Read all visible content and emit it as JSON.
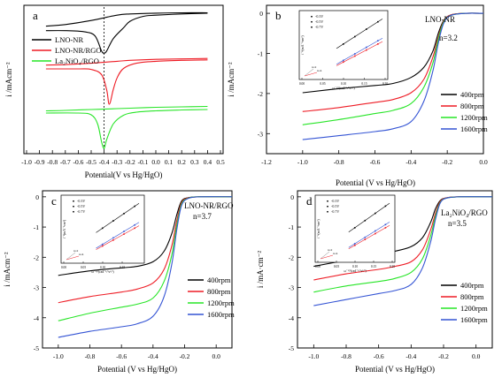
{
  "colors": {
    "black": "#000000",
    "red": "#ee1c25",
    "green": "#27e527",
    "blue": "#3454d4"
  },
  "chart_data": [
    {
      "panel": "a",
      "type": "line",
      "xlabel": "Potential(V vs Hg/HgO)",
      "ylabel": "i /mAcm⁻²",
      "xlim": [
        -1.0,
        0.5
      ],
      "xticks": [
        "-1.0",
        "-0.9",
        "-0.8",
        "-0.7",
        "-0.6",
        "-0.5",
        "-0.4",
        "-0.3",
        "-0.2",
        "-0.1",
        "0.0",
        "0.1",
        "0.2",
        "0.3",
        "0.4",
        "0.5"
      ],
      "y_tick_labels": "none",
      "legend": "top-left",
      "vertical_line_x": -0.4,
      "series": [
        {
          "name": "LNO-NR",
          "color": "black",
          "forward": [
            [
              -0.85,
              0.55
            ],
            [
              -0.7,
              0.55
            ],
            [
              -0.55,
              0.52
            ],
            [
              -0.47,
              0.42
            ],
            [
              -0.42,
              0.05
            ],
            [
              -0.4,
              0.0
            ],
            [
              -0.38,
              0.05
            ],
            [
              -0.33,
              0.35
            ],
            [
              -0.25,
              0.62
            ],
            [
              -0.2,
              0.78
            ],
            [
              -0.1,
              0.9
            ],
            [
              0.0,
              0.93
            ],
            [
              0.2,
              0.96
            ],
            [
              0.4,
              0.98
            ]
          ],
          "reverse": [
            [
              0.4,
              0.99
            ],
            [
              0.2,
              0.99
            ],
            [
              0.0,
              0.98
            ],
            [
              -0.2,
              0.96
            ],
            [
              -0.3,
              0.93
            ],
            [
              -0.5,
              0.8
            ],
            [
              -0.7,
              0.7
            ],
            [
              -0.85,
              0.66
            ]
          ]
        },
        {
          "name": "LNO-NR/RGO",
          "color": "red",
          "forward": [
            [
              -0.85,
              0.74
            ],
            [
              -0.6,
              0.74
            ],
            [
              -0.5,
              0.73
            ],
            [
              -0.42,
              0.62
            ],
            [
              -0.38,
              0.3
            ],
            [
              -0.36,
              0.0
            ],
            [
              -0.33,
              0.3
            ],
            [
              -0.3,
              0.55
            ],
            [
              -0.25,
              0.75
            ],
            [
              -0.15,
              0.86
            ],
            [
              0.0,
              0.9
            ],
            [
              0.2,
              0.92
            ],
            [
              0.4,
              0.93
            ]
          ],
          "reverse": [
            [
              0.4,
              0.96
            ],
            [
              0.2,
              0.95
            ],
            [
              0.0,
              0.94
            ],
            [
              -0.2,
              0.92
            ],
            [
              -0.3,
              0.9
            ],
            [
              -0.5,
              0.86
            ],
            [
              -0.7,
              0.83
            ],
            [
              -0.85,
              0.82
            ]
          ]
        },
        {
          "name": "La₂NiO₄/RGO",
          "color": "green",
          "forward": [
            [
              -0.85,
              0.8
            ],
            [
              -0.6,
              0.8
            ],
            [
              -0.5,
              0.76
            ],
            [
              -0.45,
              0.55
            ],
            [
              -0.42,
              0.15
            ],
            [
              -0.4,
              0.0
            ],
            [
              -0.38,
              0.2
            ],
            [
              -0.33,
              0.55
            ],
            [
              -0.25,
              0.75
            ],
            [
              -0.15,
              0.82
            ],
            [
              0.0,
              0.85
            ],
            [
              0.2,
              0.87
            ],
            [
              0.4,
              0.88
            ]
          ],
          "reverse": [
            [
              0.4,
              0.95
            ],
            [
              0.2,
              0.94
            ],
            [
              0.0,
              0.93
            ],
            [
              -0.2,
              0.91
            ],
            [
              -0.3,
              0.9
            ],
            [
              -0.5,
              0.88
            ],
            [
              -0.7,
              0.86
            ],
            [
              -0.85,
              0.85
            ]
          ]
        }
      ]
    },
    {
      "panel": "b",
      "type": "line",
      "title": "LNO-NR",
      "annotation": "n=3.2",
      "xlabel": "Potential (V vs Hg/HgO)",
      "ylabel": "i /mAcm⁻²",
      "xlim": [
        -1.2,
        0.0
      ],
      "ylim": [
        -3.5,
        0.2
      ],
      "xticks": [
        "-1.2",
        "-1.0",
        "-0.8",
        "-0.6",
        "-0.4",
        "-0.2",
        "0.0"
      ],
      "yticks": [
        "0",
        "-1",
        "-2",
        "-3"
      ],
      "legend": "bottom-right",
      "series": [
        {
          "name": "400rpm",
          "color": "black",
          "points": [
            [
              -1.0,
              -1.98
            ],
            [
              -0.8,
              -1.88
            ],
            [
              -0.6,
              -1.8
            ],
            [
              -0.5,
              -1.75
            ],
            [
              -0.4,
              -1.6
            ],
            [
              -0.33,
              -1.35
            ],
            [
              -0.28,
              -0.95
            ],
            [
              -0.25,
              -0.5
            ],
            [
              -0.22,
              -0.18
            ],
            [
              -0.18,
              -0.04
            ],
            [
              -0.1,
              0.0
            ],
            [
              0.0,
              0.0
            ]
          ]
        },
        {
          "name": "800rpm",
          "color": "red",
          "points": [
            [
              -1.0,
              -2.45
            ],
            [
              -0.8,
              -2.35
            ],
            [
              -0.6,
              -2.22
            ],
            [
              -0.5,
              -2.15
            ],
            [
              -0.4,
              -1.98
            ],
            [
              -0.33,
              -1.65
            ],
            [
              -0.28,
              -1.1
            ],
            [
              -0.25,
              -0.6
            ],
            [
              -0.22,
              -0.2
            ],
            [
              -0.18,
              -0.04
            ],
            [
              -0.1,
              0.0
            ],
            [
              0.0,
              0.0
            ]
          ]
        },
        {
          "name": "1200rpm",
          "color": "green",
          "points": [
            [
              -1.0,
              -2.78
            ],
            [
              -0.8,
              -2.65
            ],
            [
              -0.6,
              -2.5
            ],
            [
              -0.5,
              -2.42
            ],
            [
              -0.4,
              -2.25
            ],
            [
              -0.33,
              -1.85
            ],
            [
              -0.28,
              -1.25
            ],
            [
              -0.25,
              -0.65
            ],
            [
              -0.22,
              -0.22
            ],
            [
              -0.18,
              -0.05
            ],
            [
              -0.1,
              0.0
            ],
            [
              0.0,
              0.0
            ]
          ]
        },
        {
          "name": "1600rpm",
          "color": "blue",
          "points": [
            [
              -1.0,
              -3.15
            ],
            [
              -0.8,
              -3.05
            ],
            [
              -0.6,
              -2.95
            ],
            [
              -0.5,
              -2.88
            ],
            [
              -0.4,
              -2.7
            ],
            [
              -0.33,
              -2.2
            ],
            [
              -0.28,
              -1.45
            ],
            [
              -0.25,
              -0.75
            ],
            [
              -0.22,
              -0.25
            ],
            [
              -0.18,
              -0.05
            ],
            [
              -0.1,
              0.0
            ],
            [
              0.0,
              0.0
            ]
          ]
        }
      ],
      "inset": {
        "xlabel": "ω⁻¹/²(rad⁻¹/²s¹/²)",
        "ylabel": "i⁻¹(mA⁻¹cm²)",
        "xlim": [
          0.0,
          0.2
        ],
        "xticks": [
          "0.00",
          "0.05",
          "0.10",
          "0.15",
          "0.20"
        ],
        "legend": [
          "-0.3V",
          "-0.5V",
          "-0.7V"
        ],
        "guide_labels": [
          "n=2",
          "n=4"
        ]
      }
    },
    {
      "panel": "c",
      "type": "line",
      "title": "LNO-NR/RGO",
      "annotation": "n=3.7",
      "xlabel": "Potential (V vs Hg/HgO)",
      "ylabel": "i /mAcm⁻²",
      "xlim": [
        -1.1,
        0.1
      ],
      "ylim": [
        -5,
        0.2
      ],
      "xticks": [
        "-1.0",
        "-0.8",
        "-0.6",
        "-0.4",
        "-0.2",
        "0.0"
      ],
      "yticks": [
        "0",
        "-1",
        "-2",
        "-3",
        "-4",
        "-5"
      ],
      "legend": "bottom-right",
      "series": [
        {
          "name": "400rpm",
          "color": "black",
          "points": [
            [
              -1.0,
              -2.6
            ],
            [
              -0.8,
              -2.45
            ],
            [
              -0.6,
              -2.35
            ],
            [
              -0.5,
              -2.3
            ],
            [
              -0.4,
              -2.15
            ],
            [
              -0.33,
              -1.8
            ],
            [
              -0.28,
              -1.2
            ],
            [
              -0.25,
              -0.6
            ],
            [
              -0.22,
              -0.15
            ],
            [
              -0.18,
              -0.03
            ],
            [
              -0.1,
              0.0
            ],
            [
              0.1,
              0.0
            ]
          ]
        },
        {
          "name": "800rpm",
          "color": "red",
          "points": [
            [
              -1.0,
              -3.5
            ],
            [
              -0.8,
              -3.3
            ],
            [
              -0.6,
              -3.15
            ],
            [
              -0.5,
              -3.05
            ],
            [
              -0.4,
              -2.85
            ],
            [
              -0.33,
              -2.4
            ],
            [
              -0.28,
              -1.6
            ],
            [
              -0.25,
              -0.8
            ],
            [
              -0.22,
              -0.2
            ],
            [
              -0.18,
              -0.04
            ],
            [
              -0.1,
              0.0
            ],
            [
              0.1,
              0.0
            ]
          ]
        },
        {
          "name": "1200rpm",
          "color": "green",
          "points": [
            [
              -1.0,
              -4.1
            ],
            [
              -0.8,
              -3.85
            ],
            [
              -0.6,
              -3.65
            ],
            [
              -0.5,
              -3.55
            ],
            [
              -0.4,
              -3.35
            ],
            [
              -0.33,
              -2.8
            ],
            [
              -0.28,
              -1.9
            ],
            [
              -0.25,
              -0.95
            ],
            [
              -0.22,
              -0.25
            ],
            [
              -0.18,
              -0.05
            ],
            [
              -0.1,
              0.0
            ],
            [
              0.1,
              0.0
            ]
          ]
        },
        {
          "name": "1600rpm",
          "color": "blue",
          "points": [
            [
              -1.0,
              -4.65
            ],
            [
              -0.8,
              -4.45
            ],
            [
              -0.6,
              -4.3
            ],
            [
              -0.5,
              -4.2
            ],
            [
              -0.4,
              -3.95
            ],
            [
              -0.33,
              -3.3
            ],
            [
              -0.28,
              -2.2
            ],
            [
              -0.25,
              -1.1
            ],
            [
              -0.22,
              -0.3
            ],
            [
              -0.18,
              -0.06
            ],
            [
              -0.1,
              0.0
            ],
            [
              0.1,
              0.0
            ]
          ]
        }
      ],
      "inset": {
        "xlabel": "ω⁻¹/²(rad⁻¹/²s¹/²)",
        "ylabel": "i⁻¹(mA⁻¹cm²)",
        "xlim": [
          0.0,
          0.2
        ],
        "xticks": [
          "0.00",
          "0.05",
          "0.10",
          "0.15"
        ],
        "legend": [
          "-0.3V",
          "-0.5V",
          "-0.7V"
        ],
        "guide_labels": [
          "n=2",
          "n=4"
        ]
      }
    },
    {
      "panel": "d",
      "type": "line",
      "title": "La₂NiO₄/RGO",
      "annotation": "n=3.5",
      "xlabel": "Potential (V vs Hg/HgO)",
      "ylabel": "i /mA·cm⁻²",
      "xlim": [
        -1.1,
        0.1
      ],
      "ylim": [
        -5,
        0.2
      ],
      "xticks": [
        "-1.0",
        "-0.8",
        "-0.6",
        "-0.4",
        "-0.2",
        "0.0"
      ],
      "yticks": [
        "0",
        "-1",
        "-2",
        "-3",
        "-4",
        "-5"
      ],
      "legend": "bottom-right",
      "series": [
        {
          "name": "400rpm",
          "color": "black",
          "points": [
            [
              -1.0,
              -2.3
            ],
            [
              -0.8,
              -2.1
            ],
            [
              -0.6,
              -1.9
            ],
            [
              -0.5,
              -1.8
            ],
            [
              -0.4,
              -1.65
            ],
            [
              -0.33,
              -1.35
            ],
            [
              -0.28,
              -0.85
            ],
            [
              -0.25,
              -0.4
            ],
            [
              -0.22,
              -0.12
            ],
            [
              -0.18,
              -0.03
            ],
            [
              -0.1,
              0.0
            ],
            [
              0.1,
              0.0
            ]
          ]
        },
        {
          "name": "800rpm",
          "color": "red",
          "points": [
            [
              -1.0,
              -2.75
            ],
            [
              -0.8,
              -2.55
            ],
            [
              -0.6,
              -2.4
            ],
            [
              -0.5,
              -2.3
            ],
            [
              -0.4,
              -2.15
            ],
            [
              -0.33,
              -1.75
            ],
            [
              -0.28,
              -1.1
            ],
            [
              -0.25,
              -0.55
            ],
            [
              -0.22,
              -0.15
            ],
            [
              -0.18,
              -0.03
            ],
            [
              -0.1,
              0.0
            ],
            [
              0.1,
              0.0
            ]
          ]
        },
        {
          "name": "1200rpm",
          "color": "green",
          "points": [
            [
              -1.0,
              -3.15
            ],
            [
              -0.8,
              -2.95
            ],
            [
              -0.6,
              -2.8
            ],
            [
              -0.5,
              -2.7
            ],
            [
              -0.4,
              -2.5
            ],
            [
              -0.33,
              -2.05
            ],
            [
              -0.28,
              -1.3
            ],
            [
              -0.25,
              -0.65
            ],
            [
              -0.22,
              -0.18
            ],
            [
              -0.18,
              -0.04
            ],
            [
              -0.1,
              0.0
            ],
            [
              0.1,
              0.0
            ]
          ]
        },
        {
          "name": "1600rpm",
          "color": "blue",
          "points": [
            [
              -1.0,
              -3.6
            ],
            [
              -0.8,
              -3.4
            ],
            [
              -0.6,
              -3.2
            ],
            [
              -0.5,
              -3.1
            ],
            [
              -0.4,
              -2.9
            ],
            [
              -0.33,
              -2.35
            ],
            [
              -0.28,
              -1.5
            ],
            [
              -0.25,
              -0.75
            ],
            [
              -0.22,
              -0.2
            ],
            [
              -0.18,
              -0.04
            ],
            [
              -0.1,
              0.0
            ],
            [
              0.1,
              0.0
            ]
          ]
        }
      ],
      "inset": {
        "xlabel": "ω⁻¹/²(rad⁻¹/²s¹/²)",
        "ylabel": "i⁻¹(mA⁻¹cm²)",
        "xlim": [
          0.0,
          0.2
        ],
        "xticks": [
          "0.00",
          "0.05",
          "0.10",
          "0.15",
          "0.20"
        ],
        "legend": [
          "-0.3V",
          "-0.5V",
          "-0.7V"
        ],
        "guide_labels": [
          "n=2",
          "n=4"
        ]
      }
    }
  ]
}
